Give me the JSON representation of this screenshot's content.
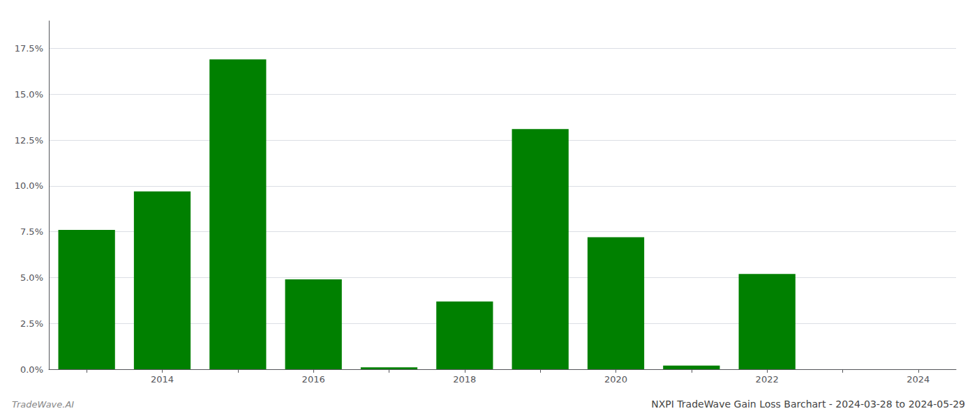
{
  "chart_data": {
    "type": "bar",
    "title": "NXPI TradeWave Gain Loss Barchart - 2024-03-28 to 2024-05-29",
    "annotations": [
      "TradeWave.AI"
    ],
    "categories": [
      null,
      "2014",
      null,
      "2016",
      null,
      "2018",
      null,
      "2020",
      null,
      "2022",
      null,
      "2024"
    ],
    "values": [
      0.076,
      0.097,
      0.169,
      0.049,
      0.001,
      0.037,
      0.131,
      0.072,
      0.002,
      0.052,
      0.0,
      0.0
    ],
    "color": "#008000",
    "ylim": [
      0,
      0.19
    ],
    "yticks": [
      {
        "value": 0.0,
        "label": "0.0%"
      },
      {
        "value": 0.025,
        "label": "2.5%"
      },
      {
        "value": 0.05,
        "label": "5.0%"
      },
      {
        "value": 0.075,
        "label": "7.5%"
      },
      {
        "value": 0.1,
        "label": "10.0%"
      },
      {
        "value": 0.125,
        "label": "12.5%"
      },
      {
        "value": 0.15,
        "label": "15.0%"
      },
      {
        "value": 0.175,
        "label": "17.5%"
      }
    ],
    "grid": true
  }
}
